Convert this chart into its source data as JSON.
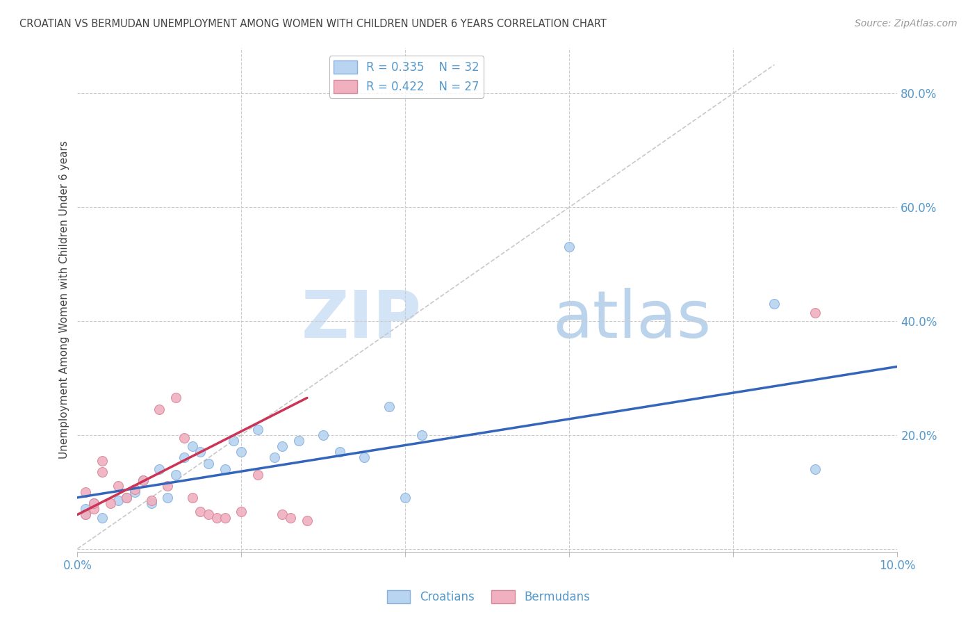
{
  "title": "CROATIAN VS BERMUDAN UNEMPLOYMENT AMONG WOMEN WITH CHILDREN UNDER 6 YEARS CORRELATION CHART",
  "source": "Source: ZipAtlas.com",
  "ylabel": "Unemployment Among Women with Children Under 6 years",
  "xlim": [
    0.0,
    0.1
  ],
  "ylim": [
    -0.005,
    0.88
  ],
  "xticks": [
    0.0,
    0.02,
    0.04,
    0.06,
    0.08,
    0.1
  ],
  "yticks_right": [
    0.0,
    0.2,
    0.4,
    0.6,
    0.8
  ],
  "ytick_labels_right": [
    "",
    "20.0%",
    "40.0%",
    "60.0%",
    "80.0%"
  ],
  "xtick_labels": [
    "0.0%",
    "",
    "",
    "",
    "",
    "10.0%"
  ],
  "watermark_zip": "ZIP",
  "watermark_atlas": "atlas",
  "croatians_x": [
    0.001,
    0.001,
    0.002,
    0.003,
    0.005,
    0.006,
    0.007,
    0.008,
    0.009,
    0.01,
    0.011,
    0.012,
    0.013,
    0.014,
    0.015,
    0.016,
    0.018,
    0.019,
    0.02,
    0.022,
    0.024,
    0.025,
    0.027,
    0.03,
    0.032,
    0.035,
    0.038,
    0.04,
    0.042,
    0.06,
    0.085,
    0.09
  ],
  "croatians_y": [
    0.06,
    0.07,
    0.08,
    0.055,
    0.085,
    0.09,
    0.1,
    0.12,
    0.08,
    0.14,
    0.09,
    0.13,
    0.16,
    0.18,
    0.17,
    0.15,
    0.14,
    0.19,
    0.17,
    0.21,
    0.16,
    0.18,
    0.19,
    0.2,
    0.17,
    0.16,
    0.25,
    0.09,
    0.2,
    0.53,
    0.43,
    0.14
  ],
  "bermudans_x": [
    0.001,
    0.001,
    0.002,
    0.002,
    0.003,
    0.003,
    0.004,
    0.005,
    0.006,
    0.007,
    0.008,
    0.009,
    0.01,
    0.011,
    0.012,
    0.013,
    0.014,
    0.015,
    0.016,
    0.017,
    0.018,
    0.02,
    0.022,
    0.025,
    0.026,
    0.028,
    0.09
  ],
  "bermudans_y": [
    0.06,
    0.1,
    0.07,
    0.08,
    0.135,
    0.155,
    0.08,
    0.11,
    0.09,
    0.105,
    0.12,
    0.085,
    0.245,
    0.11,
    0.265,
    0.195,
    0.09,
    0.065,
    0.06,
    0.055,
    0.055,
    0.065,
    0.13,
    0.06,
    0.055,
    0.05,
    0.415
  ],
  "blue_line_x": [
    0.0,
    0.1
  ],
  "blue_line_y": [
    0.09,
    0.32
  ],
  "pink_line_x": [
    0.0,
    0.028
  ],
  "pink_line_y": [
    0.06,
    0.265
  ],
  "diag_line_x": [
    0.0,
    0.085
  ],
  "diag_line_y": [
    0.0,
    0.85
  ],
  "dot_size": 100,
  "blue_fill": "#b8d4f0",
  "blue_edge": "#8ab0dd",
  "pink_fill": "#f0b0c0",
  "pink_edge": "#d88898",
  "blue_line_color": "#3366bb",
  "pink_line_color": "#cc3355",
  "axis_color": "#5599cc",
  "title_color": "#444444",
  "grid_color": "#cccccc",
  "background_color": "#ffffff"
}
